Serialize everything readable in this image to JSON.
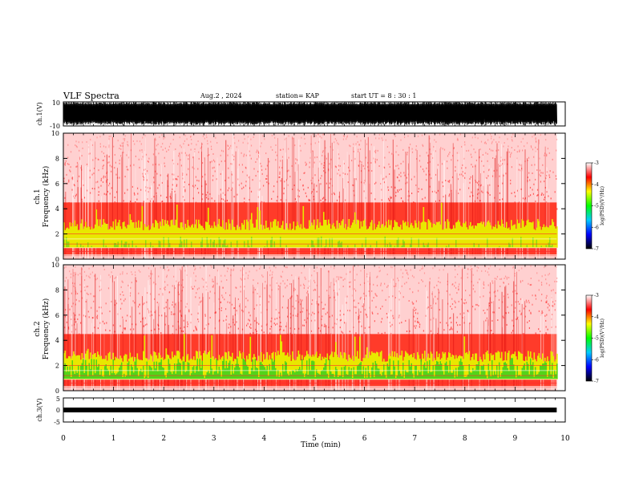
{
  "header": {
    "title": "VLF Spectra",
    "date": "Aug.2  , 2024",
    "station": "station= KAP",
    "start": "start  UT =   8  : 30 : 1"
  },
  "chart_data": [
    {
      "type": "line",
      "name": "waveform-ch1",
      "ylabel": "ch.1(V)",
      "ylim": [
        -10,
        10
      ],
      "yticks": [
        "10",
        "-10"
      ],
      "xlim": [
        0,
        10
      ]
    },
    {
      "type": "heatmap",
      "name": "spectrogram-ch1",
      "ylabel": "ch.1\nFrequency  (kHz)",
      "ylabel_line1": "ch.1",
      "ylabel_line2": "Frequency  (kHz)",
      "ylim": [
        0,
        10
      ],
      "yticks": [
        "0",
        "2",
        "4",
        "6",
        "8",
        "10"
      ],
      "xlim": [
        0,
        10
      ],
      "colorbar": {
        "min": -7,
        "max": -3,
        "ticks": [
          "-3",
          "-4",
          "-5",
          "-6",
          "-7"
        ],
        "label": "log(PSD)(V²/Hz)"
      }
    },
    {
      "type": "heatmap",
      "name": "spectrogram-ch2",
      "ylabel_line1": "ch.2",
      "ylabel_line2": "Frequency  (kHz)",
      "ylim": [
        0,
        10
      ],
      "yticks": [
        "0",
        "2",
        "4",
        "6",
        "8",
        "10"
      ],
      "xlim": [
        0,
        10
      ],
      "colorbar": {
        "min": -7,
        "max": -3,
        "ticks": [
          "-3",
          "-4",
          "-5",
          "-6",
          "-7"
        ],
        "label": "log(PSD)(V²/Hz)"
      }
    },
    {
      "type": "line",
      "name": "waveform-ch3",
      "ylabel": "ch.3(V)",
      "ylim": [
        -5,
        5
      ],
      "yticks": [
        "5",
        "0",
        "-5"
      ],
      "xlim": [
        0,
        10
      ]
    }
  ],
  "xaxis": {
    "label": "Time  (min)",
    "ticks": [
      "0",
      "1",
      "2",
      "3",
      "4",
      "5",
      "6",
      "7",
      "8",
      "9",
      "10"
    ]
  },
  "colors": {
    "background": "#ffffff",
    "noise_red": "#ff2a2a",
    "band_yellow": "#e8e800",
    "band_green": "#22cc22",
    "scale": [
      "#000000",
      "#0000ff",
      "#00ccff",
      "#00ff00",
      "#ffff00",
      "#ff0000",
      "#ffffff"
    ]
  }
}
